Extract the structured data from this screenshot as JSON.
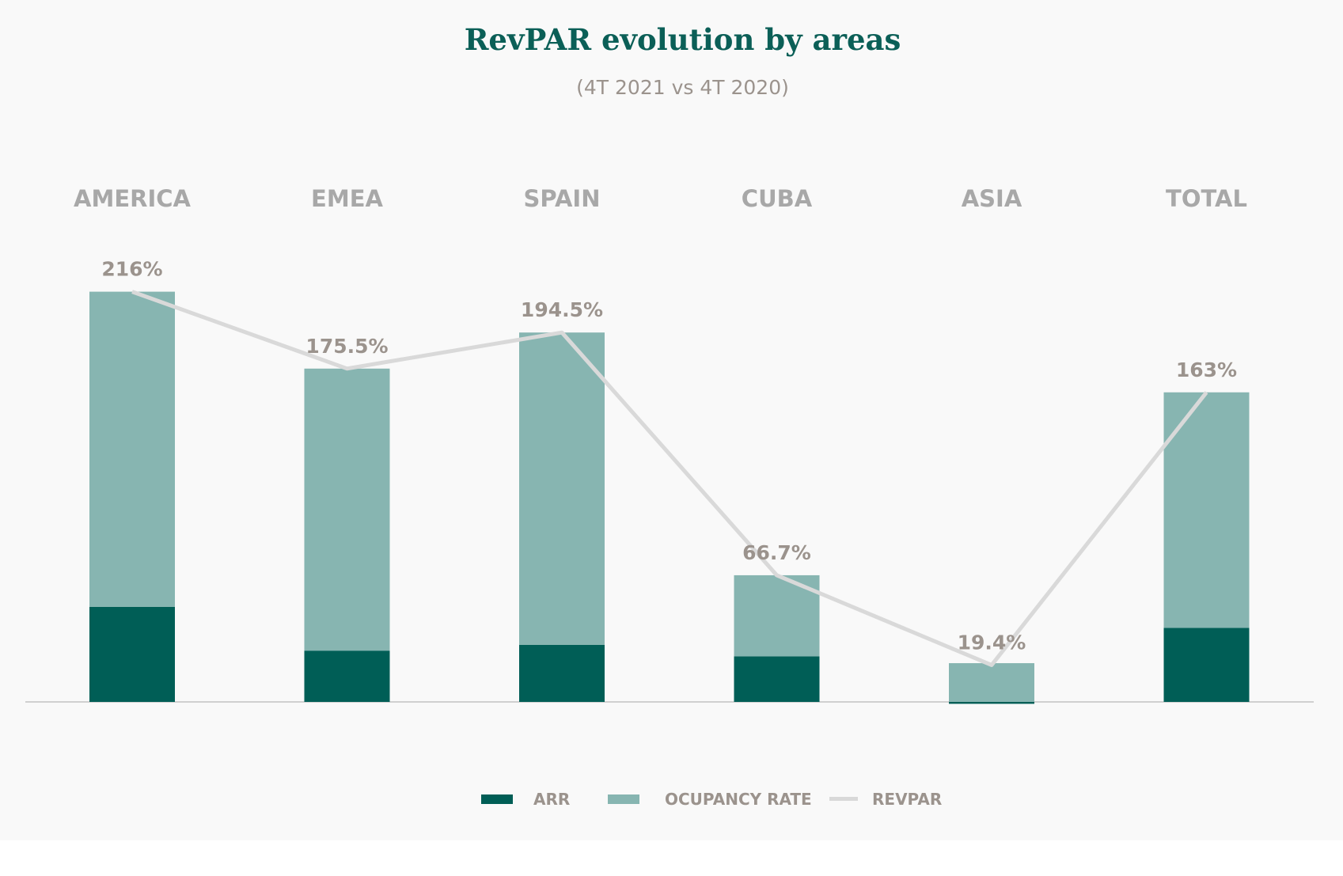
{
  "chart_data": {
    "type": "bar",
    "stacked": true,
    "title": "RevPAR evolution by areas",
    "subtitle": "(4T 2021 vs 4T 2020)",
    "categories": [
      "AMERICA",
      "EMEA",
      "SPAIN",
      "CUBA",
      "ASIA",
      "TOTAL"
    ],
    "series": [
      {
        "name": "ARR",
        "kind": "bar",
        "color": "#005e56",
        "values": [
          50,
          27,
          30,
          24,
          -1,
          39
        ]
      },
      {
        "name": "OCUPANCY RATE",
        "kind": "bar",
        "color": "#87b5b1",
        "values": [
          166,
          148.5,
          164.5,
          42.7,
          20.4,
          124
        ]
      },
      {
        "name": "REVPAR",
        "kind": "line",
        "color": "#d9d9d9",
        "values": [
          216,
          175.5,
          194.5,
          66.7,
          19.4,
          163
        ]
      }
    ],
    "data_labels": [
      "216%",
      "175.5%",
      "194.5%",
      "66.7%",
      "19.4%",
      "163%"
    ],
    "ylim": [
      -5,
      240
    ],
    "legend_position": "bottom"
  }
}
